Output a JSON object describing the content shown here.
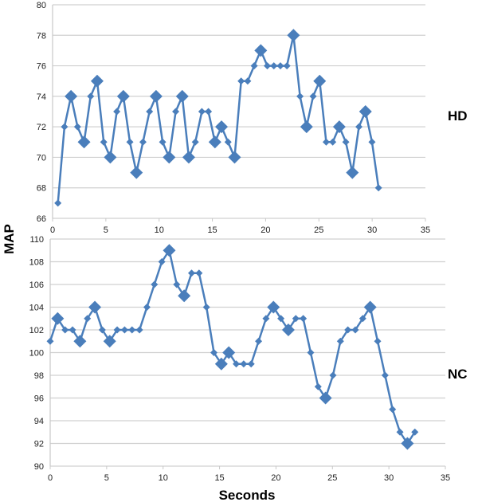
{
  "chart_data": [
    {
      "type": "line",
      "title": "",
      "series_label": "HD",
      "xlabel": "",
      "ylabel": "MAP",
      "xlim": [
        0,
        35
      ],
      "ylim": [
        66,
        80
      ],
      "xticks": [
        0,
        5,
        10,
        15,
        20,
        25,
        30,
        35
      ],
      "yticks": [
        66,
        68,
        70,
        72,
        74,
        76,
        78,
        80
      ],
      "grid": "horizontal",
      "x_start": 0.5,
      "x_end": 30.6,
      "values": [
        67,
        72,
        74,
        72,
        71,
        74,
        75,
        71,
        70,
        73,
        74,
        71,
        69,
        71,
        73,
        74,
        71,
        70,
        73,
        74,
        70,
        71,
        73,
        73,
        71,
        72,
        71,
        70,
        75,
        75,
        76,
        77,
        76,
        76,
        76,
        76,
        78,
        74,
        72,
        74,
        75,
        71,
        71,
        72,
        71,
        69,
        72,
        73,
        71,
        68
      ],
      "highlighted_indices": [
        2,
        4,
        6,
        8,
        10,
        12,
        15,
        17,
        19,
        20,
        24,
        25,
        27,
        31,
        36,
        38,
        40,
        43,
        45,
        47
      ],
      "color": "#4a7ebb"
    },
    {
      "type": "line",
      "title": "",
      "series_label": "NC",
      "xlabel": "Seconds",
      "ylabel": "MAP",
      "xlim": [
        0,
        35
      ],
      "ylim": [
        90,
        110
      ],
      "xticks": [
        0,
        5,
        10,
        15,
        20,
        25,
        30,
        35
      ],
      "yticks": [
        90,
        92,
        94,
        96,
        98,
        100,
        102,
        104,
        106,
        108,
        110
      ],
      "grid": "horizontal",
      "x_start": 0,
      "x_end": 32.3,
      "values": [
        101,
        103,
        102,
        102,
        101,
        103,
        104,
        102,
        101,
        102,
        102,
        102,
        102,
        104,
        106,
        108,
        109,
        106,
        105,
        107,
        107,
        104,
        100,
        99,
        100,
        99,
        99,
        99,
        101,
        103,
        104,
        103,
        102,
        103,
        103,
        100,
        97,
        96,
        98,
        101,
        102,
        102,
        103,
        104,
        101,
        98,
        95,
        93,
        92,
        93
      ],
      "highlighted_indices": [
        1,
        4,
        6,
        8,
        16,
        18,
        23,
        24,
        30,
        32,
        37,
        43,
        48
      ],
      "color": "#4a7ebb"
    }
  ],
  "labels": {
    "y_axis": "MAP",
    "x_axis": "Seconds",
    "top_series": "HD",
    "bottom_series": "NC"
  }
}
